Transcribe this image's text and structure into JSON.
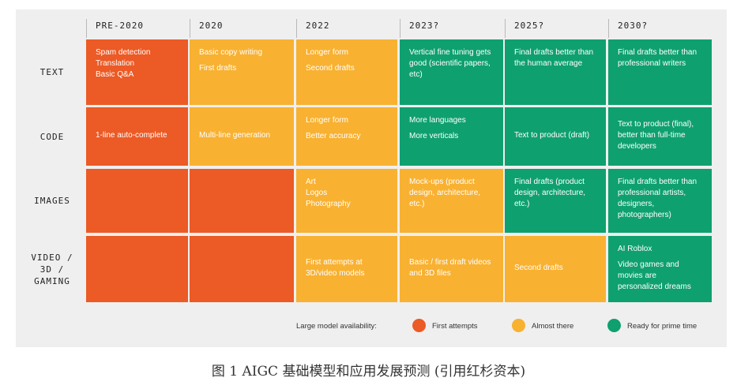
{
  "columns": [
    "PRE-2020",
    "2020",
    "2022",
    "2023?",
    "2025?",
    "2030?"
  ],
  "rows": [
    {
      "label": "TEXT",
      "cells": [
        {
          "status": "first",
          "lines": [
            "Spam detection",
            "Translation",
            "Basic Q&A"
          ]
        },
        {
          "status": "almost",
          "lines": [
            "Basic copy writing",
            "First drafts"
          ]
        },
        {
          "status": "almost",
          "lines": [
            "Longer form",
            "Second drafts"
          ]
        },
        {
          "status": "ready",
          "lines": [
            "Vertical fine tuning gets good (scientific papers, etc)"
          ]
        },
        {
          "status": "ready",
          "lines": [
            "Final drafts better than the human average"
          ]
        },
        {
          "status": "ready",
          "lines": [
            "Final drafts better than professional writers"
          ]
        }
      ]
    },
    {
      "label": "CODE",
      "cells": [
        {
          "status": "first",
          "lines": [
            "1-line auto-complete"
          ]
        },
        {
          "status": "almost",
          "lines": [
            "Multi-line generation"
          ]
        },
        {
          "status": "almost",
          "lines": [
            "Longer form",
            "Better accuracy"
          ]
        },
        {
          "status": "ready",
          "lines": [
            "More languages",
            "More verticals"
          ]
        },
        {
          "status": "ready",
          "lines": [
            "Text to product (draft)"
          ]
        },
        {
          "status": "ready",
          "lines": [
            "Text to product (final), better than full-time developers"
          ]
        }
      ]
    },
    {
      "label": "IMAGES",
      "cells": [
        {
          "status": "first",
          "lines": []
        },
        {
          "status": "first",
          "lines": []
        },
        {
          "status": "almost",
          "lines": [
            "Art",
            "Logos",
            "Photography"
          ]
        },
        {
          "status": "almost",
          "lines": [
            "Mock-ups (product design, architecture, etc.)"
          ]
        },
        {
          "status": "ready",
          "lines": [
            "Final drafts (product design, architecture, etc.)"
          ]
        },
        {
          "status": "ready",
          "lines": [
            "Final drafts better than professional artists, designers, photographers)"
          ]
        }
      ]
    },
    {
      "label": "VIDEO / 3D / GAMING",
      "cells": [
        {
          "status": "first",
          "lines": []
        },
        {
          "status": "first",
          "lines": []
        },
        {
          "status": "almost",
          "lines": [
            "First attempts at 3D/video models"
          ]
        },
        {
          "status": "almost",
          "lines": [
            "Basic / first draft videos and 3D files"
          ]
        },
        {
          "status": "almost",
          "lines": [
            "Second drafts"
          ]
        },
        {
          "status": "ready",
          "lines": [
            "AI Roblox",
            "Video games and movies are personalized dreams"
          ]
        }
      ]
    }
  ],
  "legend": {
    "title": "Large model availability:",
    "items": [
      {
        "label": "First attempts",
        "color": "#ec5a25"
      },
      {
        "label": "Almost there",
        "color": "#f8b131"
      },
      {
        "label": "Ready for prime time",
        "color": "#0fa070"
      }
    ]
  },
  "caption": "图 1    AIGC 基础模型和应用发展预测 (引用红杉资本)"
}
